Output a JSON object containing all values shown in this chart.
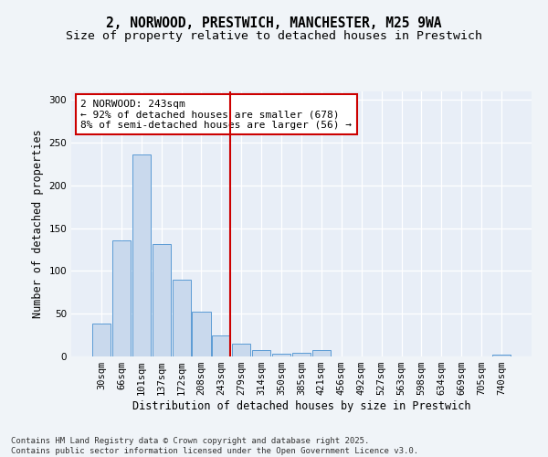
{
  "title": "2, NORWOOD, PRESTWICH, MANCHESTER, M25 9WA",
  "subtitle": "Size of property relative to detached houses in Prestwich",
  "xlabel": "Distribution of detached houses by size in Prestwich",
  "ylabel": "Number of detached properties",
  "categories": [
    "30sqm",
    "66sqm",
    "101sqm",
    "137sqm",
    "172sqm",
    "208sqm",
    "243sqm",
    "279sqm",
    "314sqm",
    "350sqm",
    "385sqm",
    "421sqm",
    "456sqm",
    "492sqm",
    "527sqm",
    "563sqm",
    "598sqm",
    "634sqm",
    "669sqm",
    "705sqm",
    "740sqm"
  ],
  "values": [
    38,
    136,
    236,
    132,
    90,
    52,
    25,
    15,
    7,
    3,
    4,
    7,
    0,
    0,
    0,
    0,
    0,
    0,
    0,
    0,
    2
  ],
  "bar_color": "#c9d9ed",
  "bar_edge_color": "#5b9bd5",
  "vline_index": 6,
  "vline_color": "#cc0000",
  "annotation_title": "2 NORWOOD: 243sqm",
  "annotation_line1": "← 92% of detached houses are smaller (678)",
  "annotation_line2": "8% of semi-detached houses are larger (56) →",
  "annotation_box_color": "#ffffff",
  "annotation_box_edge": "#cc0000",
  "ylim": [
    0,
    310
  ],
  "yticks": [
    0,
    50,
    100,
    150,
    200,
    250,
    300
  ],
  "fig_background": "#f0f4f8",
  "ax_background": "#e8eef7",
  "grid_color": "#ffffff",
  "footer": "Contains HM Land Registry data © Crown copyright and database right 2025.\nContains public sector information licensed under the Open Government Licence v3.0.",
  "title_fontsize": 10.5,
  "subtitle_fontsize": 9.5,
  "axis_label_fontsize": 8.5,
  "tick_fontsize": 7.5,
  "annotation_fontsize": 8,
  "footer_fontsize": 6.5
}
